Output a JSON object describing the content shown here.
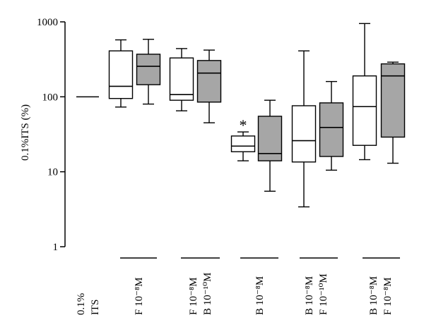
{
  "chart_data": {
    "type": "box",
    "ylabel": "0.1%ITS (%)",
    "yscale": "log",
    "ylim": [
      1,
      1000
    ],
    "yticks": [
      {
        "value": 1,
        "label": "1"
      },
      {
        "value": 10,
        "label": "10"
      },
      {
        "value": 100,
        "label": "100"
      },
      {
        "value": 1000,
        "label": "1000"
      }
    ],
    "grid": false,
    "colors": {
      "unfilled": "#ffffff",
      "filled": "#a6a6a6",
      "stroke": "#000000"
    },
    "groups": [
      {
        "lines": [
          "0.1%",
          "ITS"
        ],
        "underline": false
      },
      {
        "lines": [
          "F 10⁻⁸M"
        ],
        "underline": true
      },
      {
        "lines": [
          "F 10⁻⁸M",
          "B 10⁻¹⁰M"
        ],
        "underline": true
      },
      {
        "lines": [
          "B 10⁻⁸M"
        ],
        "underline": true
      },
      {
        "lines": [
          "B 10⁻⁸M",
          "F 10⁻¹⁰M"
        ],
        "underline": true
      },
      {
        "lines": [
          "B 10⁻⁸M",
          "F 10⁻⁸M"
        ],
        "underline": true
      }
    ],
    "reference": {
      "group": 0,
      "value": 100
    },
    "boxes": [
      {
        "group": 1,
        "fill": "unfilled",
        "min": 73,
        "q1": 95,
        "median": 138,
        "q3": 410,
        "max": 575
      },
      {
        "group": 1,
        "fill": "filled",
        "min": 80,
        "q1": 145,
        "median": 255,
        "q3": 370,
        "max": 585
      },
      {
        "group": 2,
        "fill": "unfilled",
        "min": 65,
        "q1": 90,
        "median": 107,
        "q3": 330,
        "max": 440
      },
      {
        "group": 2,
        "fill": "filled",
        "min": 45,
        "q1": 85,
        "median": 207,
        "q3": 305,
        "max": 420
      },
      {
        "group": 3,
        "fill": "unfilled",
        "min": 14,
        "q1": 18.5,
        "median": 22,
        "q3": 30,
        "max": 34,
        "annotation": "*"
      },
      {
        "group": 3,
        "fill": "filled",
        "min": 5.5,
        "q1": 14,
        "median": 17.5,
        "q3": 55,
        "max": 90
      },
      {
        "group": 4,
        "fill": "unfilled",
        "min": 3.4,
        "q1": 13.5,
        "median": 26,
        "q3": 76,
        "max": 410
      },
      {
        "group": 4,
        "fill": "filled",
        "min": 10.5,
        "q1": 16,
        "median": 39,
        "q3": 83,
        "max": 160
      },
      {
        "group": 5,
        "fill": "unfilled",
        "min": 14.5,
        "q1": 22.5,
        "median": 74,
        "q3": 190,
        "max": 950
      },
      {
        "group": 5,
        "fill": "filled",
        "min": 13,
        "q1": 29,
        "median": 190,
        "q3": 275,
        "max": 290
      }
    ]
  }
}
